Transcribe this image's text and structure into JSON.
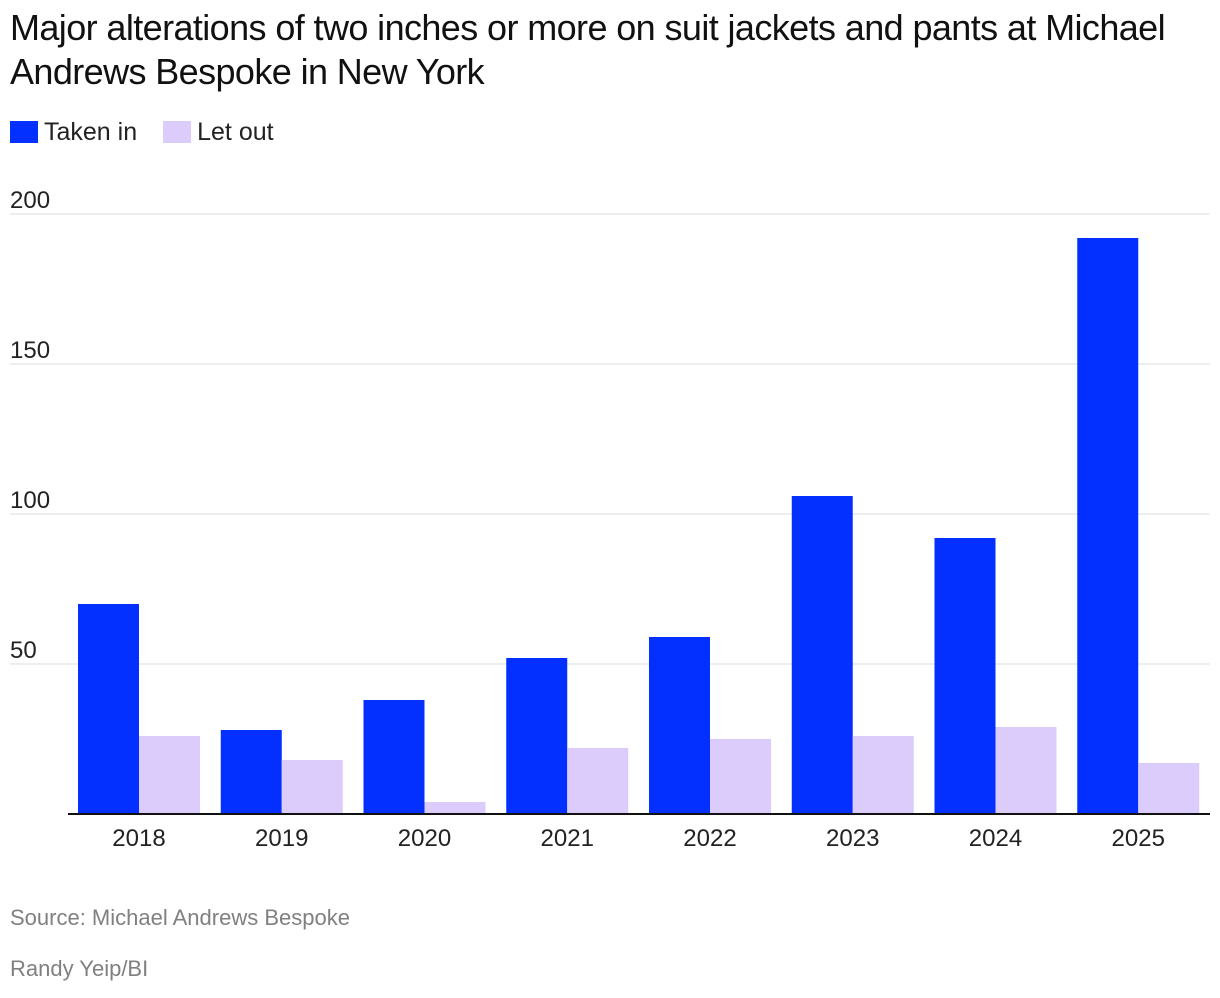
{
  "title": "Major alterations of two inches or more on suit jackets and pants at Michael Andrews Bespoke in New York",
  "source": "Source: Michael Andrews Bespoke",
  "credit": "Randy Yeip/BI",
  "colors": {
    "taken_in": "#0330FF",
    "let_out": "#DCCCFC",
    "grid": "#DDDDDD",
    "axis": "#111111"
  },
  "chart_data": {
    "type": "bar",
    "title": "Major alterations of two inches or more on suit jackets and pants at Michael Andrews Bespoke in New York",
    "categories": [
      "2018",
      "2019",
      "2020",
      "2021",
      "2022",
      "2023",
      "2024",
      "2025"
    ],
    "series": [
      {
        "name": "Taken in",
        "values": [
          70,
          28,
          38,
          52,
          59,
          106,
          92,
          192
        ]
      },
      {
        "name": "Let out",
        "values": [
          26,
          18,
          4,
          22,
          25,
          26,
          29,
          17
        ]
      }
    ],
    "yticks": [
      "50",
      "100",
      "150",
      "200"
    ],
    "ylim": [
      0,
      200
    ],
    "grid": true,
    "legend": "top-left",
    "xlabel": "",
    "ylabel": ""
  }
}
